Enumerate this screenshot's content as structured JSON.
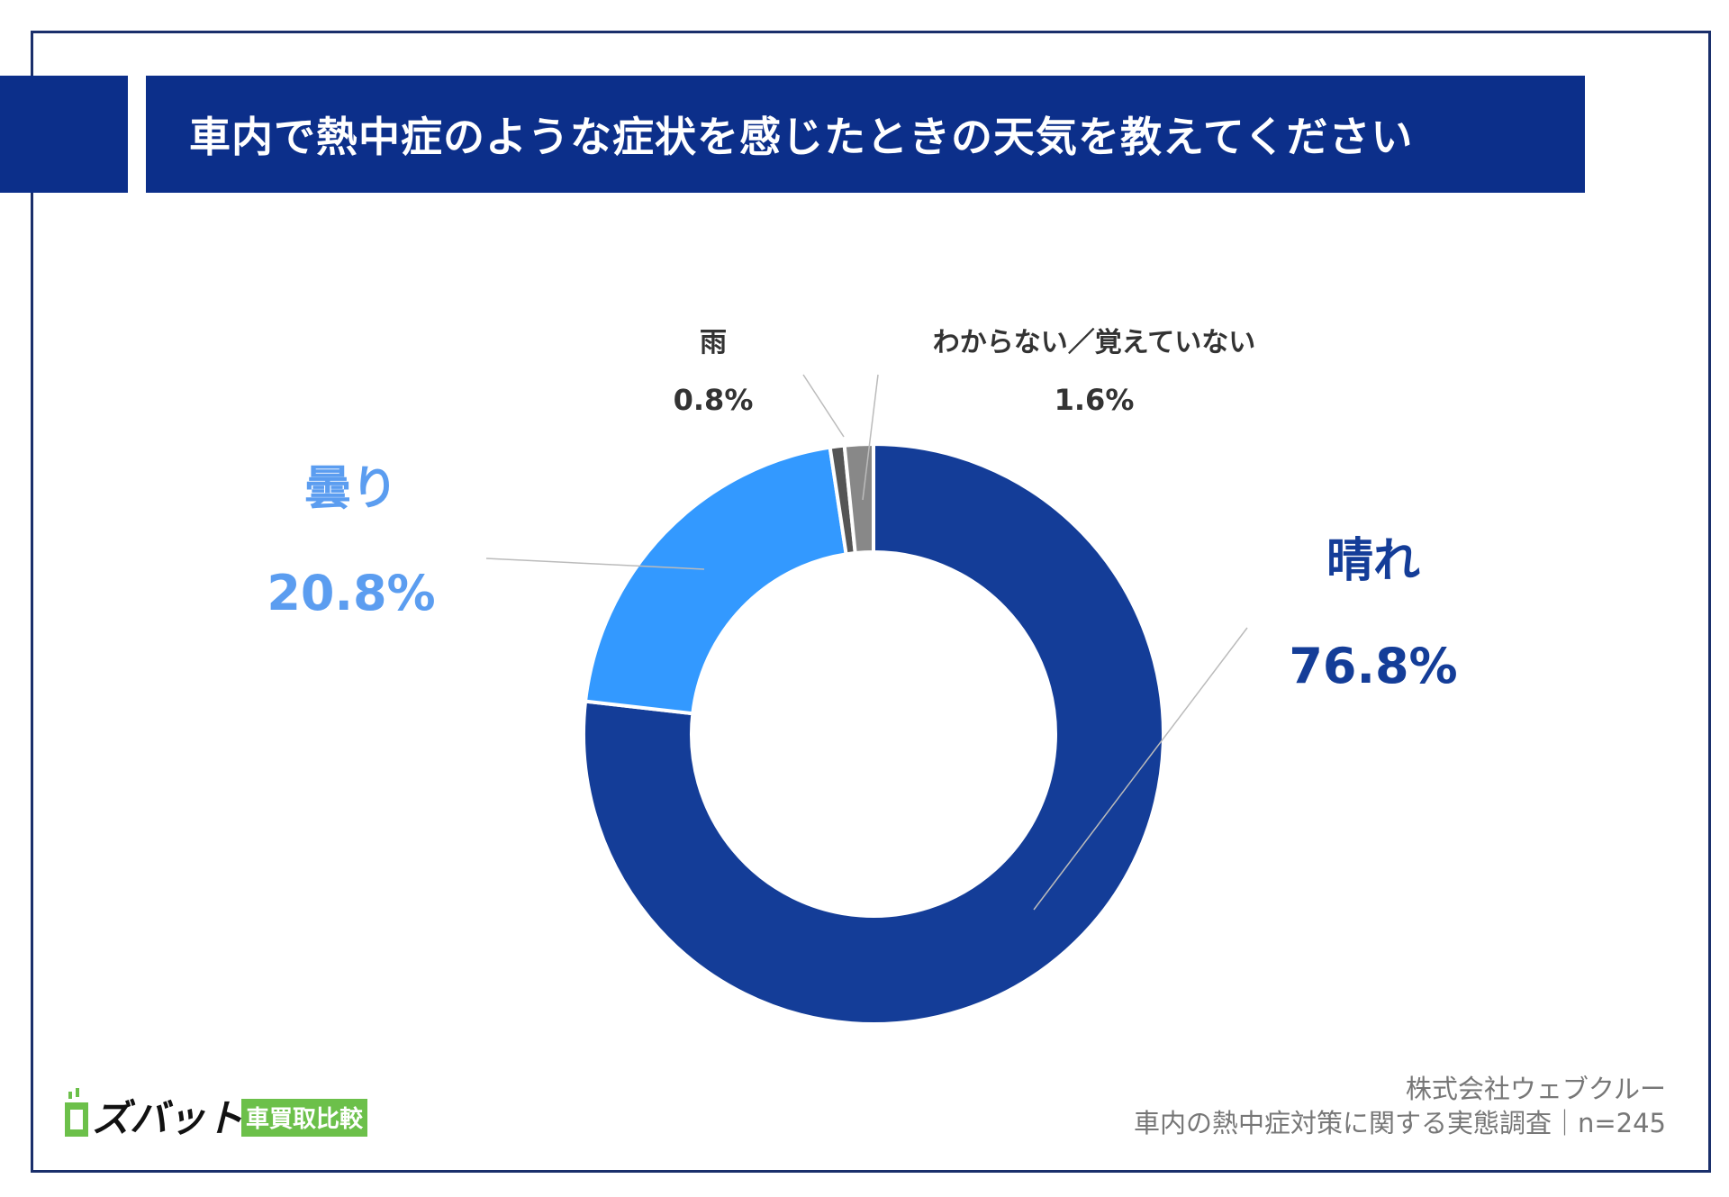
{
  "header": {
    "title": "車内で熱中症のような症状を感じたときの天気を教えてください"
  },
  "chart_data": {
    "type": "pie",
    "donut": true,
    "title": "車内で熱中症のような症状を感じたときの天気を教えてください",
    "slices": [
      {
        "label": "晴れ",
        "value": 76.8,
        "display": "76.8%",
        "color": "#143d98",
        "label_color": "#143d98"
      },
      {
        "label": "曇り",
        "value": 20.8,
        "display": "20.8%",
        "color": "#3399ff",
        "label_color": "#5b9df0"
      },
      {
        "label": "雨",
        "value": 0.8,
        "display": "0.8%",
        "color": "#555555",
        "label_color": "#333333"
      },
      {
        "label": "わからない／覚えていない",
        "value": 1.6,
        "display": "1.6%",
        "color": "#888888",
        "label_color": "#333333"
      }
    ]
  },
  "footer": {
    "company": "株式会社ウェブクルー",
    "survey": "車内の熱中症対策に関する実態調査｜n=245"
  },
  "logo": {
    "name": "ズバット",
    "tagline": "車買取比較",
    "name_color": "#111111",
    "brand_green": "#6cc04a"
  }
}
